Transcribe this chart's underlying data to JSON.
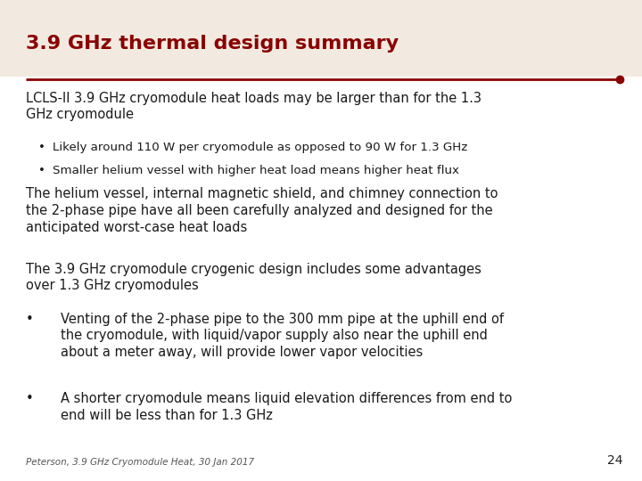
{
  "title": "3.9 GHz thermal design summary",
  "title_color": "#8B0000",
  "title_fontsize": 16,
  "line_color": "#8B0000",
  "bg_color": "#FFFFFF",
  "header_bg": "#F2EAE0",
  "body_color": "#1a1a1a",
  "body_fontsize": 10.5,
  "footer_text": "Peterson, 3.9 GHz Cryomodule Heat, 30 Jan 2017",
  "page_number": "24",
  "lines": [
    {
      "text": "LCLS-II 3.9 GHz cryomodule heat loads may be larger than for the 1.3\nGHz cryomodule",
      "indent": 0,
      "bullet": false,
      "size_factor": 1.0
    },
    {
      "text": "Likely around 110 W per cryomodule as opposed to 90 W for 1.3 GHz",
      "indent": 1,
      "bullet": true,
      "size_factor": 0.92
    },
    {
      "text": "Smaller helium vessel with higher heat load means higher heat flux",
      "indent": 1,
      "bullet": true,
      "size_factor": 0.92
    },
    {
      "text": "The helium vessel, internal magnetic shield, and chimney connection to\nthe 2-phase pipe have all been carefully analyzed and designed for the\nanticipated worst-case heat loads",
      "indent": 0,
      "bullet": false,
      "size_factor": 1.0
    },
    {
      "text": "The 3.9 GHz cryomodule cryogenic design includes some advantages\nover 1.3 GHz cryomodules",
      "indent": 0,
      "bullet": false,
      "size_factor": 1.0
    },
    {
      "text": "Venting of the 2-phase pipe to the 300 mm pipe at the uphill end of\nthe cryomodule, with liquid/vapor supply also near the uphill end\nabout a meter away, will provide lower vapor velocities",
      "indent": 2,
      "bullet": true,
      "size_factor": 1.0
    },
    {
      "text": "A shorter cryomodule means liquid elevation differences from end to\nend will be less than for 1.3 GHz",
      "indent": 2,
      "bullet": true,
      "size_factor": 1.0
    }
  ]
}
